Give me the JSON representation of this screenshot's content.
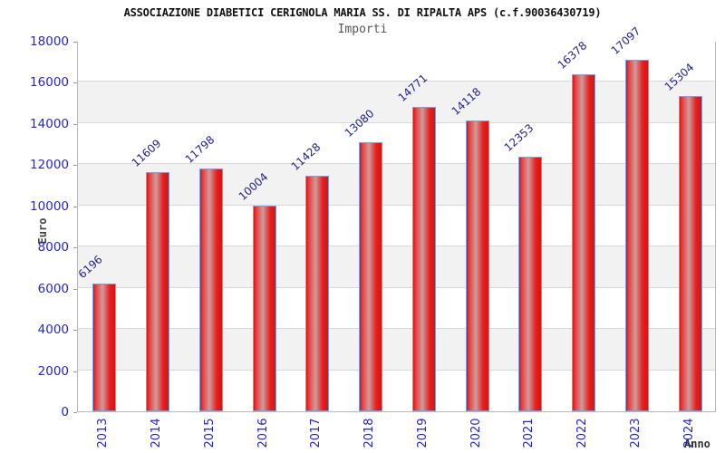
{
  "chart_data": {
    "type": "bar",
    "title": "ASSOCIAZIONE DIABETICI CERIGNOLA MARIA SS. DI RIPALTA APS (c.f.90036430719)",
    "subtitle": "Importi",
    "xlabel": "Anno",
    "ylabel": "Euro",
    "categories": [
      "2013",
      "2014",
      "2015",
      "2016",
      "2017",
      "2018",
      "2019",
      "2020",
      "2021",
      "2022",
      "2023",
      "2024"
    ],
    "values": [
      6196,
      11609,
      11798,
      10004,
      11428,
      13080,
      14771,
      14118,
      12353,
      16378,
      17097,
      15304
    ],
    "ylim": [
      0,
      18000
    ],
    "ytick_step": 2000,
    "grid": true,
    "legend_position": "none",
    "colors": {
      "bar_fill": "#e31b1b",
      "bar_highlight": "#cf9c9c",
      "bar_border": "#74a2e8",
      "tick_label": "#2424d0",
      "value_label": "#22228c",
      "band_gray": "#f2f2f2",
      "band_white": "#ffffff",
      "gridline": "#d8d8d8",
      "title": "#111111",
      "subtitle": "#555555",
      "axis_label": "#444444"
    }
  }
}
